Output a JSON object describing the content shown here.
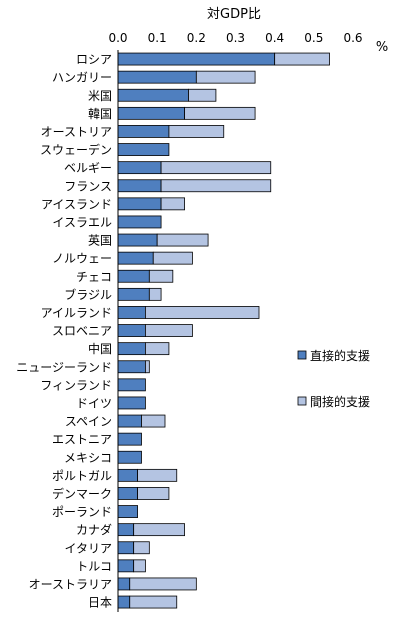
{
  "chart_data": {
    "type": "bar",
    "orientation": "horizontal",
    "stacked": true,
    "title": "対GDP比",
    "unit": "%",
    "xlim": [
      0,
      0.6
    ],
    "xticks": [
      "0.0",
      "0.1",
      "0.2",
      "0.3",
      "0.4",
      "0.5",
      "0.6"
    ],
    "grid": false,
    "legend_position": "right",
    "categories": [
      "ロシア",
      "ハンガリー",
      "米国",
      "韓国",
      "オーストリア",
      "スウェーデン",
      "ベルギー",
      "フランス",
      "アイスランド",
      "イスラエル",
      "英国",
      "ノルウェー",
      "チェコ",
      "ブラジル",
      "アイルランド",
      "スロベニア",
      "中国",
      "ニュージーランド",
      "フィンランド",
      "ドイツ",
      "スペイン",
      "エストニア",
      "メキシコ",
      "ポルトガル",
      "デンマーク",
      "ポーランド",
      "カナダ",
      "イタリア",
      "トルコ",
      "オーストラリア",
      "日本"
    ],
    "series": [
      {
        "name": "直接的支援",
        "color": "#4f7fbf",
        "values": [
          0.4,
          0.2,
          0.18,
          0.17,
          0.13,
          0.13,
          0.11,
          0.11,
          0.11,
          0.11,
          0.1,
          0.09,
          0.08,
          0.08,
          0.07,
          0.07,
          0.07,
          0.07,
          0.07,
          0.07,
          0.06,
          0.06,
          0.06,
          0.05,
          0.05,
          0.05,
          0.04,
          0.04,
          0.04,
          0.03,
          0.03
        ]
      },
      {
        "name": "間接的支援",
        "color": "#b4c4e2",
        "values": [
          0.14,
          0.15,
          0.07,
          0.18,
          0.14,
          0.0,
          0.28,
          0.28,
          0.06,
          0.0,
          0.13,
          0.1,
          0.06,
          0.03,
          0.29,
          0.12,
          0.06,
          0.01,
          0.0,
          0.0,
          0.06,
          0.0,
          0.0,
          0.1,
          0.08,
          0.0,
          0.13,
          0.04,
          0.03,
          0.17,
          0.12
        ]
      }
    ]
  }
}
